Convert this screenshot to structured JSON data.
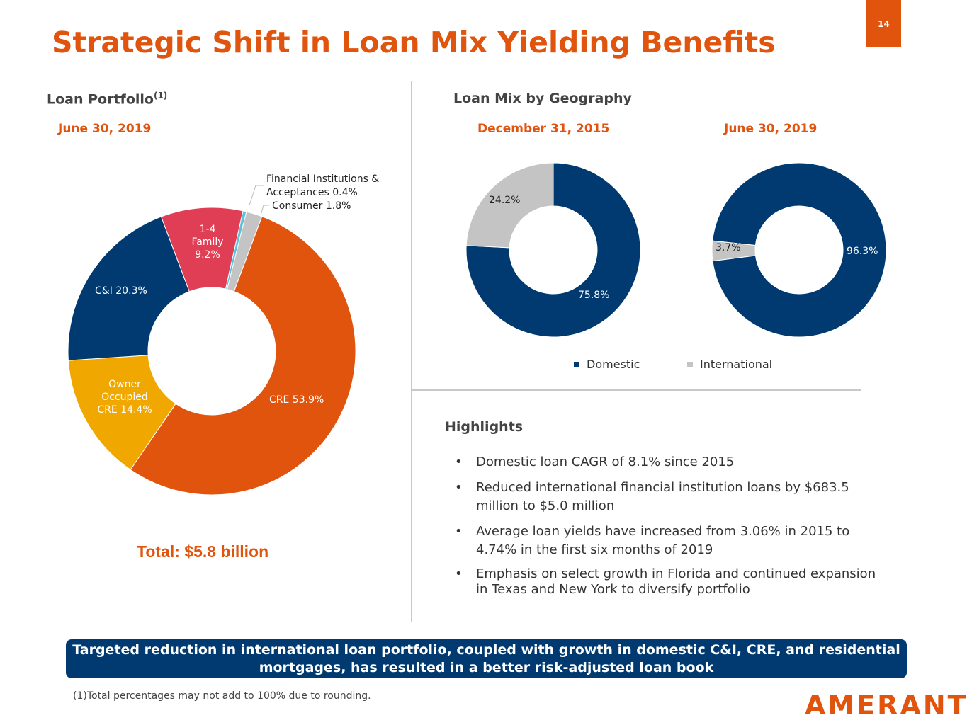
{
  "title": "Strategic Shift in Loan Mix Yielding Benefits",
  "page_number": "14",
  "portfolio": {
    "heading": "Loan Portfolio",
    "superscript": "(1)",
    "date": "June 30, 2019",
    "total": "Total: $5.8 billion",
    "slices": [
      {
        "name": "Financial Institutions & Acceptances",
        "value": 0.4,
        "color": "#5bc2d9",
        "label_line1": "Financial Institutions &",
        "label_line2": "Acceptances 0.4%"
      },
      {
        "name": "Consumer",
        "value": 1.8,
        "color": "#c4c4c4",
        "label": "Consumer 1.8%"
      },
      {
        "name": "CRE",
        "value": 53.9,
        "color": "#e0540d",
        "label": "CRE 53.9%"
      },
      {
        "name": "Owner Occupied CRE",
        "value": 14.4,
        "color": "#f0a800",
        "label_lines": [
          "Owner",
          "Occupied",
          "CRE 14.4%"
        ]
      },
      {
        "name": "C&I",
        "value": 20.3,
        "color": "#003a70",
        "label": "C&I 20.3%"
      },
      {
        "name": "1-4 Family",
        "value": 9.2,
        "color": "#df3e55",
        "label_lines": [
          "1-4",
          "Family",
          "9.2%"
        ]
      }
    ]
  },
  "geography": {
    "heading": "Loan Mix by Geography",
    "charts": [
      {
        "date": "December 31, 2015",
        "domestic": 75.8,
        "international": 24.2,
        "domestic_label": "75.8%",
        "international_label": "24.2%"
      },
      {
        "date": "June 30, 2019",
        "domestic": 96.3,
        "international": 3.7,
        "domestic_label": "96.3%",
        "international_label": "3.7%"
      }
    ],
    "legend": [
      {
        "label": "Domestic",
        "color": "#003a70"
      },
      {
        "label": "International",
        "color": "#c4c4c4"
      }
    ]
  },
  "highlights": {
    "heading": "Highlights",
    "items": [
      "Domestic loan CAGR of 8.1% since 2015",
      "Reduced international financial institution loans by $683.5 million to $5.0 million",
      "Average loan yields have increased from 3.06% in 2015 to 4.74% in the first six months of 2019",
      "Emphasis on select growth in Florida and continued expansion in Texas and New York to diversify portfolio"
    ]
  },
  "banner": "Targeted reduction in international loan portfolio, coupled with growth in domestic C&I, CRE, and residential mortgages, has resulted in a better risk-adjusted loan book",
  "footnote": "(1)Total percentages may not add to 100% due to rounding.",
  "logo": "AMERANT"
}
